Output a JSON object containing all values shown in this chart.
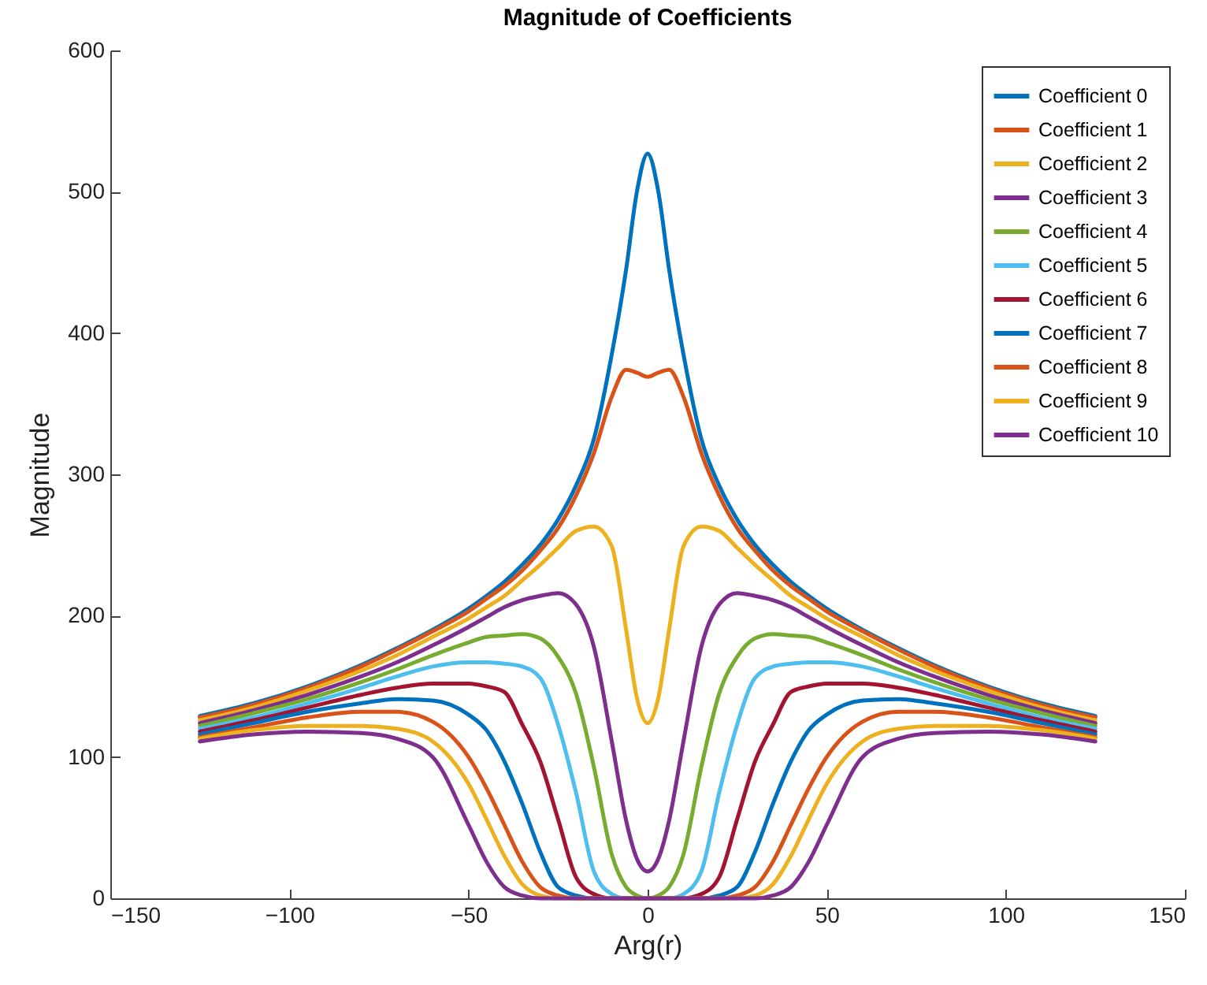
{
  "chart_data": {
    "type": "line",
    "title": "Magnitude of Coefficients",
    "xlabel": "Arg(r)",
    "ylabel": "Magnitude",
    "legend": "top right",
    "line_style": "solid",
    "xlim": [
      -150,
      150
    ],
    "ylim": [
      0,
      600
    ],
    "xticks": [
      -150,
      -100,
      -50,
      0,
      50,
      100,
      150
    ],
    "yticks": [
      0,
      100,
      200,
      300,
      400,
      500,
      600
    ],
    "x": [
      -125,
      -110,
      -95,
      -80,
      -70,
      -60,
      -50,
      -45,
      -40,
      -35,
      -30,
      -25,
      -20,
      -15,
      -10,
      -6,
      -3,
      0,
      3,
      6,
      10,
      15,
      20,
      25,
      30,
      35,
      40,
      45,
      50,
      60,
      70,
      80,
      95,
      110,
      125
    ],
    "series": [
      {
        "name": "Coefficient 0",
        "color": "#0072bd",
        "values": [
          129,
          138,
          150,
          165,
          177,
          190,
          205,
          214,
          224,
          236,
          250,
          268,
          292,
          325,
          385,
          445,
          500,
          527,
          500,
          445,
          385,
          325,
          292,
          268,
          250,
          236,
          224,
          214,
          205,
          190,
          177,
          165,
          150,
          138,
          129
        ]
      },
      {
        "name": "Coefficient 1",
        "color": "#d95319",
        "values": [
          128,
          137,
          149,
          164,
          176,
          189,
          203,
          212,
          221,
          232,
          246,
          262,
          285,
          315,
          355,
          374,
          372,
          369,
          372,
          374,
          355,
          315,
          285,
          262,
          246,
          232,
          221,
          212,
          203,
          189,
          176,
          164,
          149,
          137,
          128
        ]
      },
      {
        "name": "Coefficient 2",
        "color": "#edb120",
        "values": [
          126,
          135,
          147,
          161,
          172,
          185,
          198,
          206,
          214,
          225,
          236,
          248,
          260,
          263,
          249,
          190,
          142,
          124,
          142,
          190,
          249,
          263,
          260,
          248,
          236,
          225,
          214,
          206,
          198,
          185,
          172,
          161,
          147,
          135,
          126
        ]
      },
      {
        "name": "Coefficient 3",
        "color": "#7e2f8e",
        "values": [
          124,
          133,
          144,
          157,
          167,
          179,
          192,
          199,
          206,
          211,
          214,
          216,
          208,
          178,
          111,
          55,
          28,
          19,
          28,
          55,
          111,
          178,
          208,
          216,
          214,
          211,
          206,
          199,
          192,
          179,
          167,
          157,
          144,
          133,
          124
        ]
      },
      {
        "name": "Coefficient 4",
        "color": "#77ac30",
        "values": [
          122,
          131,
          141,
          153,
          162,
          172,
          181,
          185,
          186,
          187,
          184,
          171,
          145,
          93,
          31,
          8,
          2,
          0,
          2,
          8,
          31,
          93,
          145,
          171,
          184,
          187,
          186,
          185,
          181,
          172,
          162,
          153,
          141,
          131,
          122
        ]
      },
      {
        "name": "Coefficient 5",
        "color": "#4dbeee",
        "values": [
          120,
          128,
          138,
          149,
          157,
          164,
          167,
          167,
          166,
          164,
          156,
          123,
          75,
          19,
          3,
          0,
          0,
          0,
          0,
          0,
          3,
          19,
          75,
          123,
          156,
          164,
          166,
          167,
          167,
          164,
          157,
          149,
          138,
          128,
          120
        ]
      },
      {
        "name": "Coefficient 6",
        "color": "#a2142f",
        "values": [
          118,
          126,
          135,
          144,
          149,
          152,
          152,
          150,
          146,
          123,
          97,
          56,
          15,
          3,
          0,
          0,
          0,
          0,
          0,
          0,
          0,
          3,
          15,
          56,
          97,
          123,
          146,
          150,
          152,
          152,
          149,
          144,
          135,
          126,
          118
        ]
      },
      {
        "name": "Coefficient 7",
        "color": "#0072bd",
        "values": [
          116,
          124,
          132,
          138,
          141,
          140,
          130,
          119,
          97,
          67,
          33,
          8,
          2,
          0,
          0,
          0,
          0,
          0,
          0,
          0,
          0,
          0,
          2,
          8,
          33,
          67,
          97,
          119,
          130,
          140,
          141,
          138,
          132,
          124,
          116
        ]
      },
      {
        "name": "Coefficient 8",
        "color": "#d95319",
        "values": [
          114,
          121,
          128,
          132,
          132,
          125,
          100,
          78,
          52,
          26,
          8,
          2,
          0,
          0,
          0,
          0,
          0,
          0,
          0,
          0,
          0,
          0,
          0,
          2,
          8,
          26,
          52,
          78,
          100,
          125,
          132,
          132,
          128,
          121,
          114
        ]
      },
      {
        "name": "Coefficient 9",
        "color": "#edb120",
        "values": [
          113,
          119,
          122,
          122,
          120,
          111,
          81,
          56,
          30,
          10,
          2,
          0,
          0,
          0,
          0,
          0,
          0,
          0,
          0,
          0,
          0,
          0,
          0,
          0,
          2,
          10,
          30,
          56,
          81,
          111,
          120,
          122,
          122,
          119,
          113
        ]
      },
      {
        "name": "Coefficient 10",
        "color": "#7e2f8e",
        "values": [
          111,
          116,
          118,
          117,
          113,
          100,
          52,
          26,
          8,
          2,
          0,
          0,
          0,
          0,
          0,
          0,
          0,
          0,
          0,
          0,
          0,
          0,
          0,
          0,
          0,
          2,
          8,
          26,
          52,
          100,
          113,
          117,
          118,
          116,
          111
        ]
      }
    ]
  }
}
